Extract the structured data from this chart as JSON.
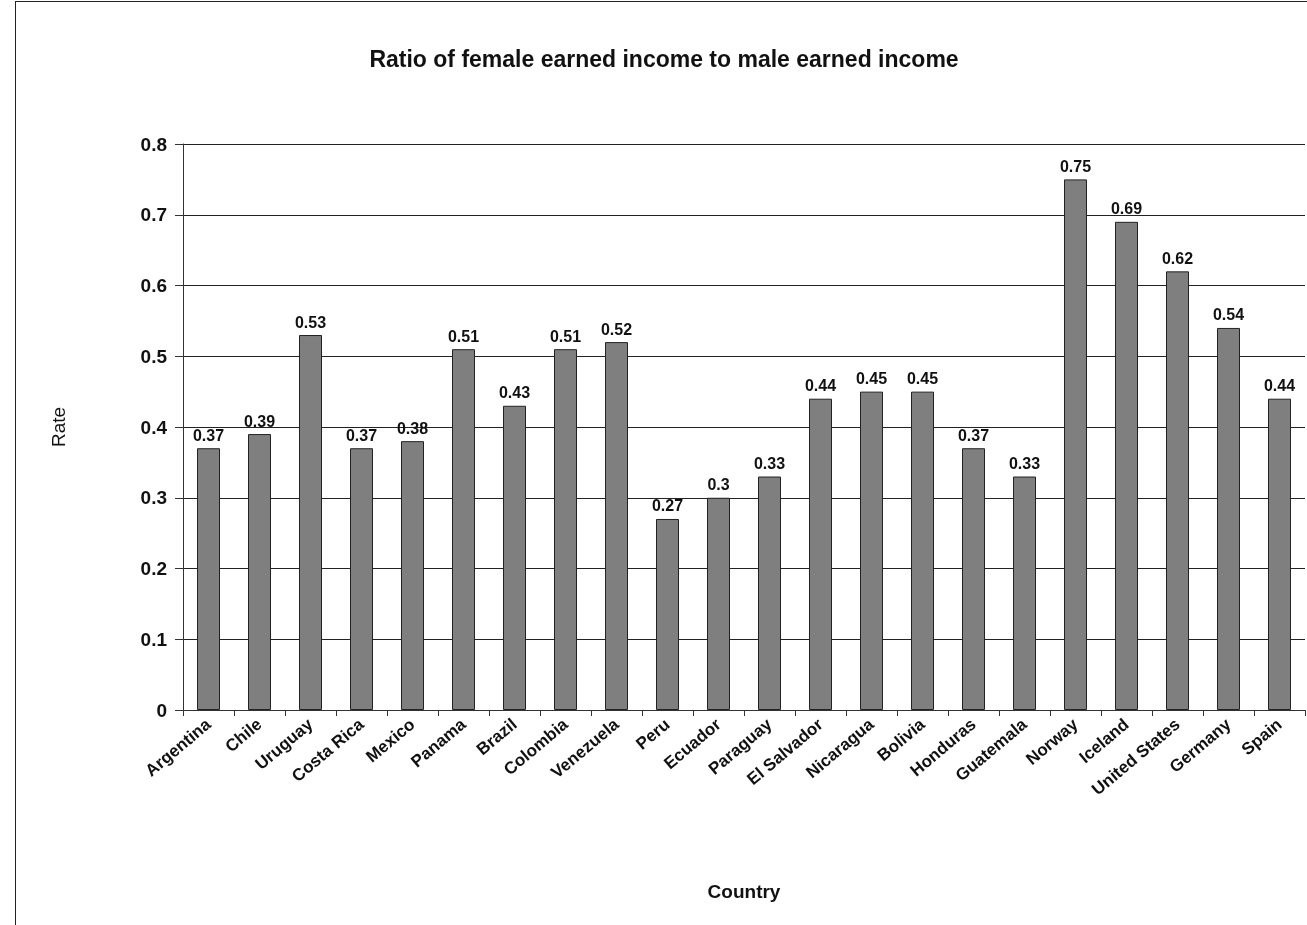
{
  "chart_data": {
    "type": "bar",
    "title": "Ratio of female earned income to male earned income",
    "xlabel": "Country",
    "ylabel": "Rate",
    "categories": [
      "Argentina",
      "Chile",
      "Uruguay",
      "Costa Rica",
      "Mexico",
      "Panama",
      "Brazil",
      "Colombia",
      "Venezuela",
      "Peru",
      "Ecuador",
      "Paraguay",
      "El Salvador",
      "Nicaragua",
      "Bolivia",
      "Honduras",
      "Guatemala",
      "Norway",
      "Iceland",
      "United States",
      "Germany",
      "Spain"
    ],
    "values": [
      0.37,
      0.39,
      0.53,
      0.37,
      0.38,
      0.51,
      0.43,
      0.51,
      0.52,
      0.27,
      0.3,
      0.33,
      0.44,
      0.45,
      0.45,
      0.37,
      0.33,
      0.75,
      0.69,
      0.62,
      0.54,
      0.44
    ],
    "color": "#7f7f7f",
    "ylim": [
      0,
      0.8
    ],
    "yticks": [
      0,
      0.1,
      0.2,
      0.3,
      0.4,
      0.5,
      0.6,
      0.7,
      0.8
    ],
    "grid": "y",
    "data_labels": true
  }
}
